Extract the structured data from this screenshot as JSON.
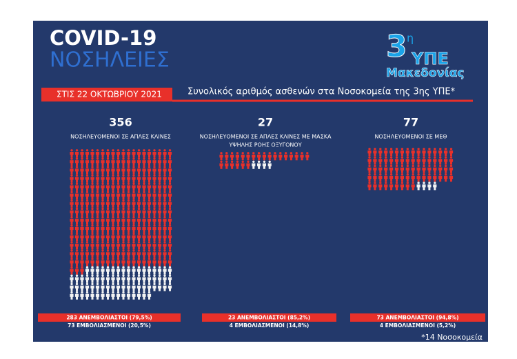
{
  "header": {
    "title": "COVID-19",
    "subtitle": "ΝΟΣΗΛΕΙΕΣ",
    "date": "ΣΤΙΣ 22 ΟΚΤΩΒΡΙΟΥ 2021",
    "heading": "Συνολικός αριθμός ασθενών στα Νοσοκομεία της 3ης ΥΠΕ*"
  },
  "logo": {
    "number": "3",
    "superscript": "η",
    "line1": "ΥΠΕ",
    "line2": "Μακεδονίας"
  },
  "panels": [
    {
      "total": 356,
      "label": [
        "ΝΟΣΗΛΕΥΟΜΕΝΟΙ ΣΕ ΑΠΛΕΣ ΚΛΙΝΕΣ"
      ],
      "unvaccinated": 283,
      "vaccinated": 73,
      "unvaccinated_label": "283 ΑΝΕΜΒΟΛΙΑΣΤΟΙ (79,5%)",
      "vaccinated_label": "73 ΕΜΒΟΛΙΑΣΜΕΝΟΙ (20,5%)"
    },
    {
      "total": 27,
      "label": [
        "ΝΟΣΗΛΕΥΟΜΕΝΟΙ ΣΕ ΑΠΛΕΣ ΚΛΙΝΕΣ ΜΕ ΜΑΣΚΑ",
        "ΥΨΗΛΗΣ ΡΟΗΣ ΟΞΥΓΟΝΟΥ"
      ],
      "unvaccinated": 23,
      "vaccinated": 4,
      "unvaccinated_label": "23 ΑΝΕΜΒΟΛΙΑΣΤΟΙ (85,2%)",
      "vaccinated_label": "4 ΕΜΒΟΛΙΑΣΜΕΝΟΙ (14,8%)"
    },
    {
      "total": 77,
      "label": [
        "ΝΟΣΗΛΕΥΟΜΕΝΟΙ ΣΕ ΜΕΘ"
      ],
      "unvaccinated": 73,
      "vaccinated": 4,
      "unvaccinated_label": "73 ΑΝΕΜΒΟΛΙΑΣΤΟΙ (94,8%)",
      "vaccinated_label": "4 ΕΜΒΟΛΙΑΣΜΕΝΟΙ (5,2%)"
    }
  ],
  "footnote": "*14 Νοσοκομεία"
}
